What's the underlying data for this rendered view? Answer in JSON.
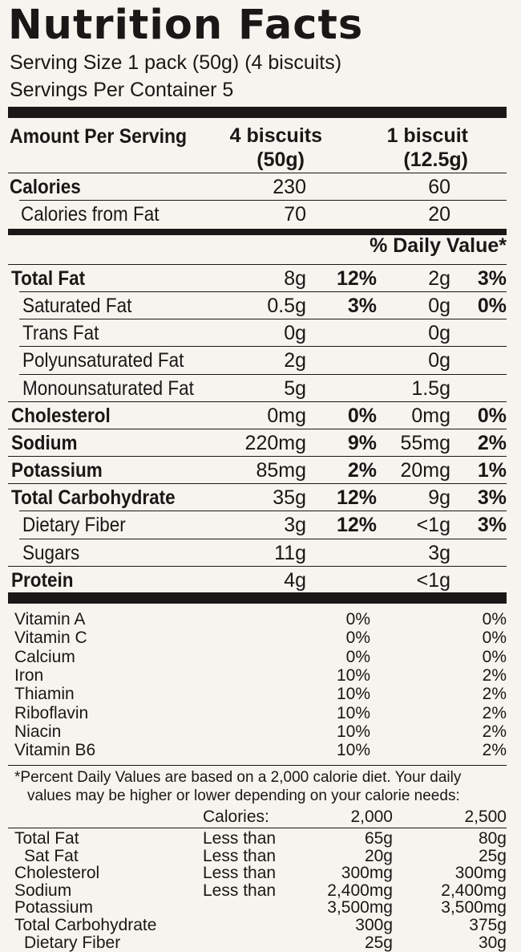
{
  "title": "Nutrition Facts",
  "serving_size": "Serving Size 1 pack (50g) (4 biscuits)",
  "servings_per_container": "Servings Per Container 5",
  "header": {
    "amount_per_serving": "Amount Per Serving",
    "col1_line1": "4 biscuits",
    "col1_line2": "(50g)",
    "col2_line1": "1 biscuit",
    "col2_line2": "(12.5g)"
  },
  "calories": {
    "label": "Calories",
    "v1": "230",
    "v2": "60"
  },
  "calories_from_fat": {
    "label": "Calories from Fat",
    "v1": "70",
    "v2": "20"
  },
  "daily_value_header": "% Daily Value*",
  "nutrients": [
    {
      "label": "Total Fat",
      "bold": true,
      "indent": false,
      "v1": "8g",
      "p1": "12%",
      "v2": "2g",
      "p2": "3%"
    },
    {
      "label": "Saturated Fat",
      "bold": false,
      "indent": true,
      "v1": "0.5g",
      "p1": "3%",
      "v2": "0g",
      "p2": "0%"
    },
    {
      "label": "Trans Fat",
      "bold": false,
      "indent": true,
      "v1": "0g",
      "p1": "",
      "v2": "0g",
      "p2": ""
    },
    {
      "label": "Polyunsaturated Fat",
      "bold": false,
      "indent": true,
      "v1": "2g",
      "p1": "",
      "v2": "0g",
      "p2": ""
    },
    {
      "label": "Monounsaturated Fat",
      "bold": false,
      "indent": true,
      "v1": "5g",
      "p1": "",
      "v2": "1.5g",
      "p2": ""
    },
    {
      "label": "Cholesterol",
      "bold": true,
      "indent": false,
      "v1": "0mg",
      "p1": "0%",
      "v2": "0mg",
      "p2": "0%"
    },
    {
      "label": "Sodium",
      "bold": true,
      "indent": false,
      "v1": "220mg",
      "p1": "9%",
      "v2": "55mg",
      "p2": "2%"
    },
    {
      "label": "Potassium",
      "bold": true,
      "indent": false,
      "v1": "85mg",
      "p1": "2%",
      "v2": "20mg",
      "p2": "1%"
    },
    {
      "label": "Total Carbohydrate",
      "bold": true,
      "indent": false,
      "v1": "35g",
      "p1": "12%",
      "v2": "9g",
      "p2": "3%"
    },
    {
      "label": "Dietary Fiber",
      "bold": false,
      "indent": true,
      "v1": "3g",
      "p1": "12%",
      "v2": "<1g",
      "p2": "3%"
    },
    {
      "label": "Sugars",
      "bold": false,
      "indent": true,
      "v1": "11g",
      "p1": "",
      "v2": "3g",
      "p2": ""
    },
    {
      "label": "Protein",
      "bold": true,
      "indent": false,
      "v1": "4g",
      "p1": "",
      "v2": "<1g",
      "p2": ""
    }
  ],
  "vitamins": [
    {
      "name": "Vitamin A",
      "a": "0%",
      "b": "0%"
    },
    {
      "name": "Vitamin C",
      "a": "0%",
      "b": "0%"
    },
    {
      "name": "Calcium",
      "a": "0%",
      "b": "0%"
    },
    {
      "name": "Iron",
      "a": "10%",
      "b": "2%"
    },
    {
      "name": "Thiamin",
      "a": "10%",
      "b": "2%"
    },
    {
      "name": "Riboflavin",
      "a": "10%",
      "b": "2%"
    },
    {
      "name": "Niacin",
      "a": "10%",
      "b": "2%"
    },
    {
      "name": "Vitamin B6",
      "a": "10%",
      "b": "2%"
    }
  ],
  "footnote": {
    "line1": "*Percent Daily Values are based on a 2,000 calorie diet. Your daily",
    "line2": "values may be higher or lower depending on your calorie needs:"
  },
  "reference": {
    "calories_label": "Calories:",
    "cal_a": "2,000",
    "cal_b": "2,500",
    "rows": [
      {
        "name": "Total Fat",
        "cond": "Less than",
        "a": "65g",
        "b": "80g"
      },
      {
        "name": " Sat Fat",
        "cond": "Less than",
        "a": "20g",
        "b": "25g"
      },
      {
        "name": "Cholesterol",
        "cond": "Less than",
        "a": "300mg",
        "b": "300mg"
      },
      {
        "name": "Sodium",
        "cond": "Less than",
        "a": "2,400mg",
        "b": "2,400mg"
      },
      {
        "name": "Potassium",
        "cond": "",
        "a": "3,500mg",
        "b": "3,500mg"
      },
      {
        "name": "Total Carbohydrate",
        "cond": "",
        "a": "300g",
        "b": "375g"
      },
      {
        "name": " Dietary Fiber",
        "cond": "",
        "a": "25g",
        "b": "30g"
      }
    ]
  }
}
